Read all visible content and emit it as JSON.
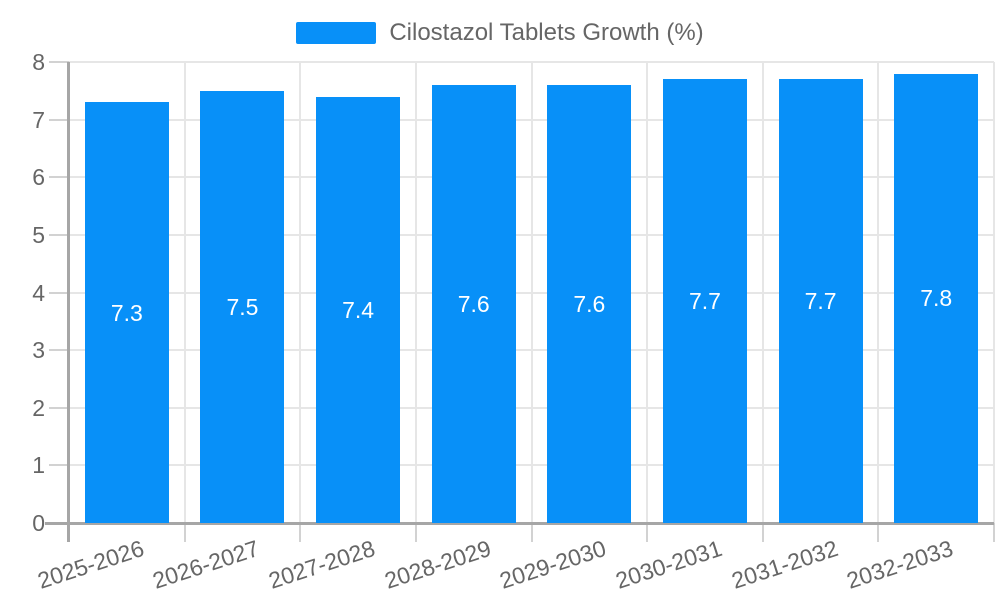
{
  "chart_data": {
    "type": "bar",
    "title": "",
    "legend": "Cilostazol Tablets Growth (%)",
    "legend_position": "top-center",
    "categories": [
      "2025-2026",
      "2026-2027",
      "2027-2028",
      "2028-2029",
      "2029-2030",
      "2030-2031",
      "2031-2032",
      "2032-2033"
    ],
    "values": [
      7.3,
      7.5,
      7.4,
      7.6,
      7.6,
      7.7,
      7.7,
      7.8
    ],
    "value_labels": [
      "7.3",
      "7.5",
      "7.4",
      "7.6",
      "7.6",
      "7.7",
      "7.7",
      "7.8"
    ],
    "xlabel": "",
    "ylabel": "",
    "ylim": [
      0,
      8
    ],
    "y_ticks": [
      0,
      1,
      2,
      3,
      4,
      5,
      6,
      7,
      8
    ],
    "grid": true,
    "colors": {
      "bar": "#0890f8",
      "grid_line": "#e6e6e6",
      "axis_line": "#a6a6a6",
      "tick": "#d2d2d2",
      "axis_text": "#666666",
      "data_label": "#ffffff",
      "background": "#ffffff"
    }
  }
}
